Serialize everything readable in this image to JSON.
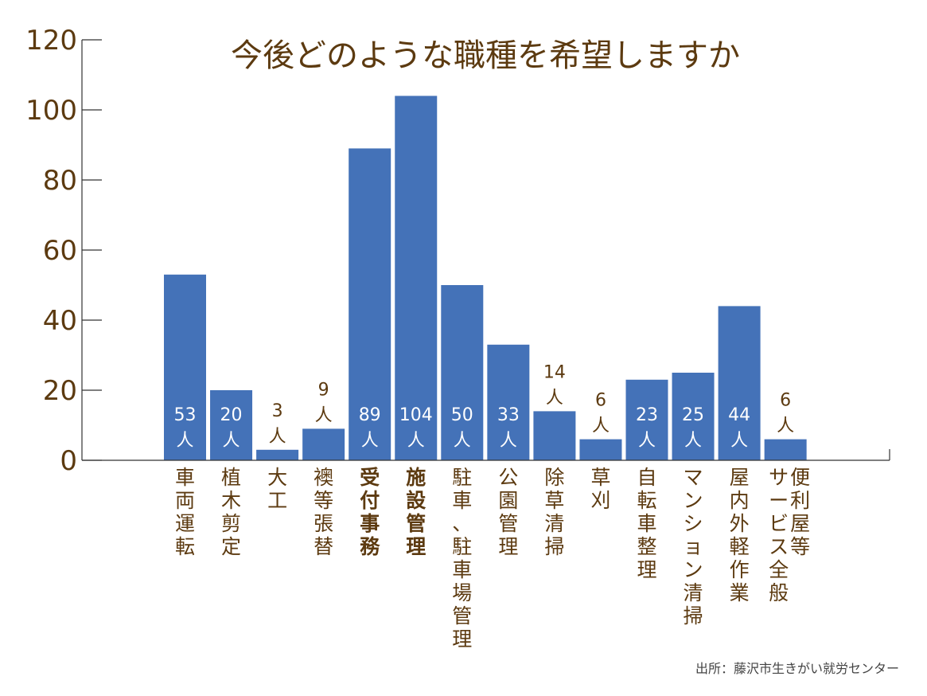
{
  "chart_data": {
    "type": "bar",
    "title": "今後どのような職種を希望しますか",
    "ylim": [
      0,
      120
    ],
    "yticks": [
      "0",
      "20",
      "40",
      "60",
      "80",
      "100",
      "120"
    ],
    "value_unit": "人",
    "categories": [
      {
        "label": "車両運転",
        "bold": false
      },
      {
        "label": "植木剪定",
        "bold": false
      },
      {
        "label": "大工",
        "bold": false
      },
      {
        "label": "襖等張替",
        "bold": false
      },
      {
        "label": "受付事務",
        "bold": true
      },
      {
        "label": "施設管理",
        "bold": true
      },
      {
        "label": "駐車、駐車場管理",
        "bold": false
      },
      {
        "label": "公園管理",
        "bold": false
      },
      {
        "label": "除草清掃",
        "bold": false
      },
      {
        "label": "草刈",
        "bold": false
      },
      {
        "label": "自転車整理",
        "bold": false
      },
      {
        "label": "マンション清掃",
        "bold": false
      },
      {
        "label": "屋内外軽作業",
        "bold": false
      },
      {
        "label": "便利屋等\nサービス全般",
        "bold": false
      }
    ],
    "values": [
      53,
      20,
      3,
      9,
      89,
      104,
      50,
      33,
      14,
      6,
      23,
      25,
      44,
      6
    ],
    "bar_color": "#4472b8",
    "grid": false,
    "legend": "none"
  },
  "source": "出所：藤沢市生きがい就労センター"
}
